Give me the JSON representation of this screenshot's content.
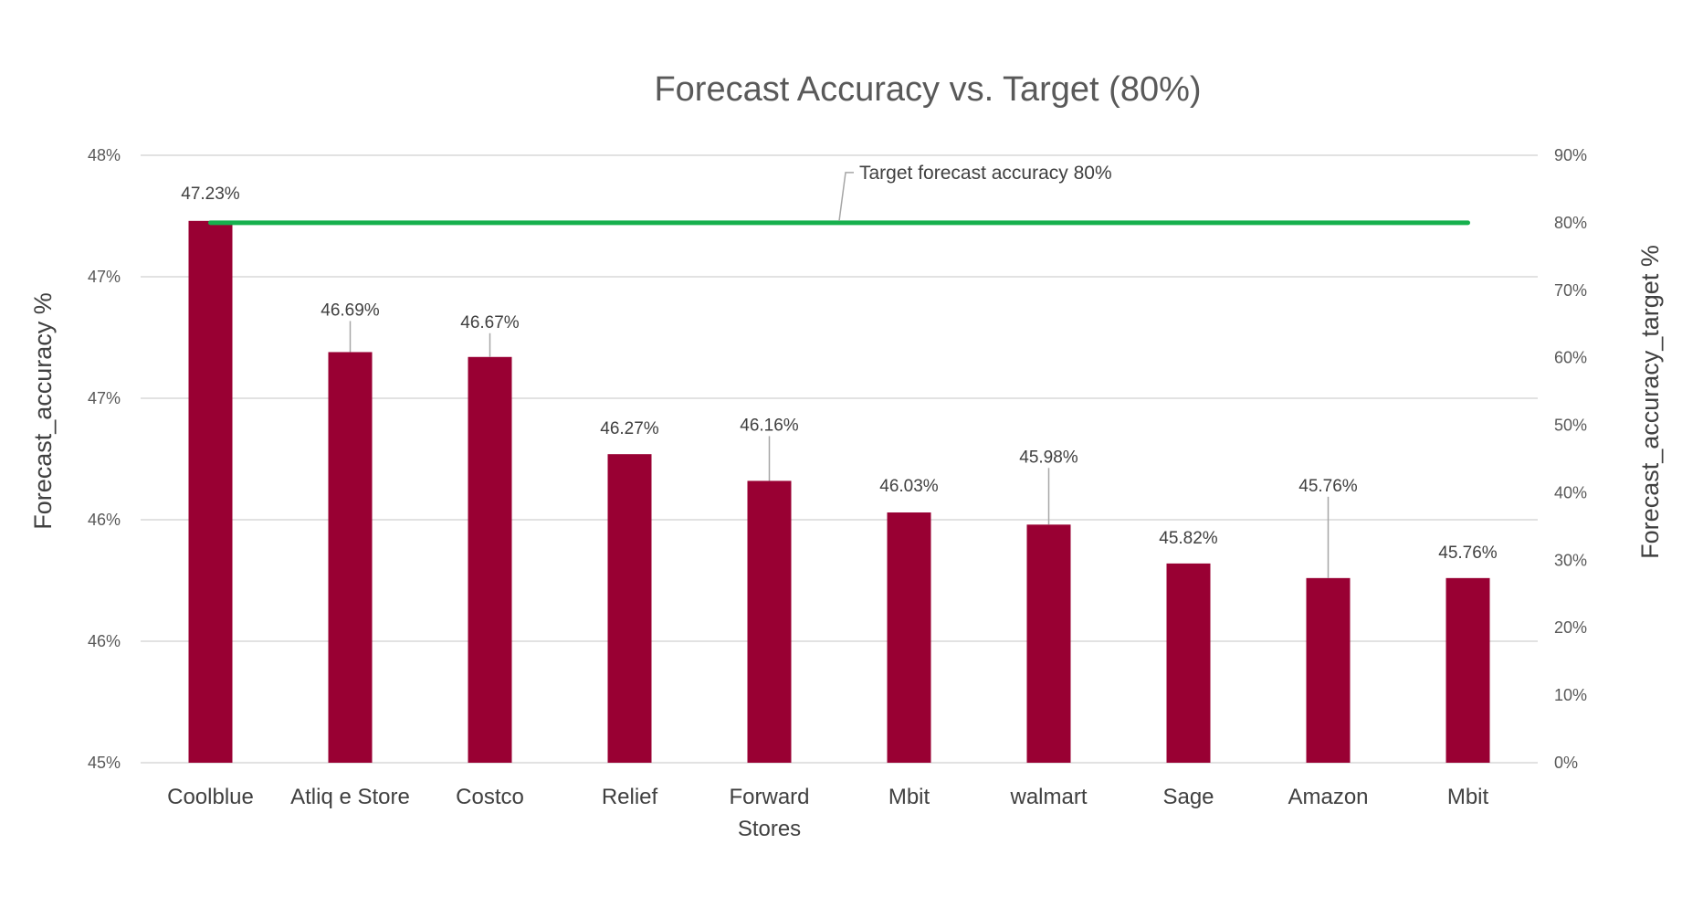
{
  "chart_data": {
    "type": "bar",
    "title": "Forecast Accuracy vs. Target (80%)",
    "ylabel": "Forecast_accuracy %",
    "y2label": "Forecast_accuracy_target %",
    "ylim": [
      45.0,
      47.5
    ],
    "y2lim": [
      0,
      90
    ],
    "y_ticks": [
      {
        "value": 45.0,
        "label": "45%"
      },
      {
        "value": 45.5,
        "label": "46%"
      },
      {
        "value": 46.0,
        "label": "46%"
      },
      {
        "value": 46.5,
        "label": "47%"
      },
      {
        "value": 47.0,
        "label": "47%"
      },
      {
        "value": 47.5,
        "label": "48%"
      }
    ],
    "y2_ticks": [
      {
        "value": 0,
        "label": "0%"
      },
      {
        "value": 10,
        "label": "10%"
      },
      {
        "value": 20,
        "label": "20%"
      },
      {
        "value": 30,
        "label": "30%"
      },
      {
        "value": 40,
        "label": "40%"
      },
      {
        "value": 50,
        "label": "50%"
      },
      {
        "value": 60,
        "label": "60%"
      },
      {
        "value": 70,
        "label": "70%"
      },
      {
        "value": 80,
        "label": "80%"
      },
      {
        "value": 90,
        "label": "90%"
      }
    ],
    "categories": [
      [
        "Coolblue"
      ],
      [
        "Atliq e Store"
      ],
      [
        "Costco"
      ],
      [
        "Relief"
      ],
      [
        "Forward",
        "Stores"
      ],
      [
        "Mbit"
      ],
      [
        "walmart"
      ],
      [
        "Sage"
      ],
      [
        "Amazon"
      ],
      [
        "Mbit"
      ]
    ],
    "values": [
      47.23,
      46.69,
      46.67,
      46.27,
      46.16,
      46.03,
      45.98,
      45.82,
      45.76,
      45.76
    ],
    "data_labels": [
      "47.23%",
      "46.69%",
      "46.67%",
      "46.27%",
      "46.16%",
      "46.03%",
      "45.98%",
      "45.82%",
      "45.76%",
      "45.76%"
    ],
    "target": {
      "value": 80,
      "axis": "secondary",
      "annotation": "Target forecast accuracy 80%"
    },
    "grid": true,
    "legend": "none",
    "colors": {
      "bar": "#990033",
      "target_line": "#16b04d",
      "grid": "#d9d9d9",
      "leader": "#a6a6a6"
    }
  }
}
